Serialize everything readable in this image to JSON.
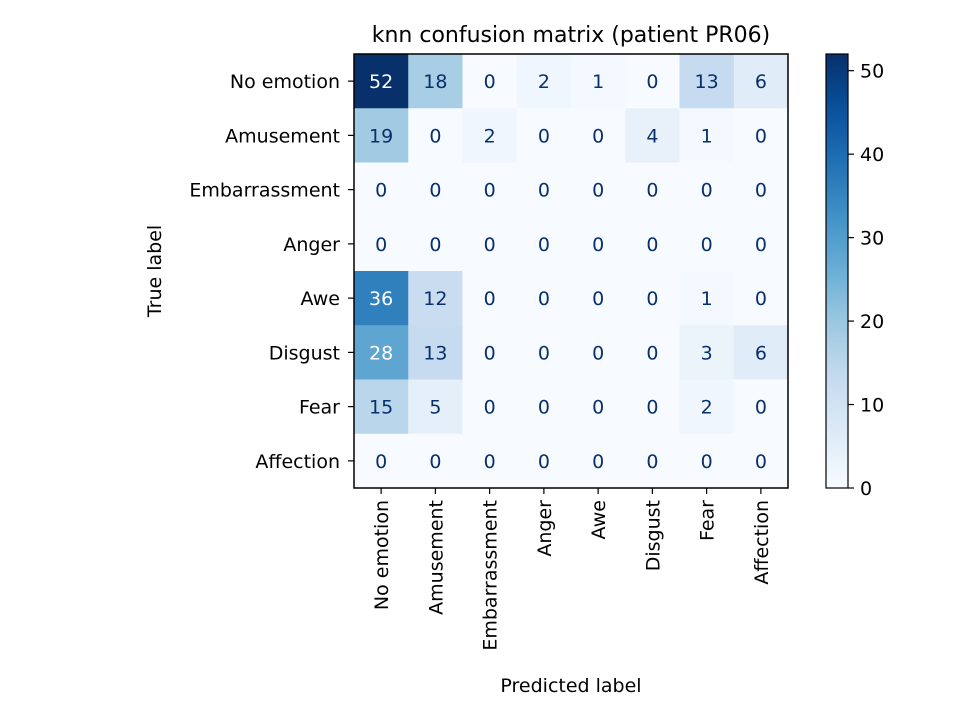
{
  "chart_data": {
    "type": "heatmap",
    "title": "knn confusion matrix (patient PR06)",
    "xlabel": "Predicted label",
    "ylabel": "True label",
    "x_categories": [
      "No emotion",
      "Amusement",
      "Embarrassment",
      "Anger",
      "Awe",
      "Disgust",
      "Fear",
      "Affection"
    ],
    "y_categories": [
      "No emotion",
      "Amusement",
      "Embarrassment",
      "Anger",
      "Awe",
      "Disgust",
      "Fear",
      "Affection"
    ],
    "matrix": [
      [
        52,
        18,
        0,
        2,
        1,
        0,
        13,
        6
      ],
      [
        19,
        0,
        2,
        0,
        0,
        4,
        1,
        0
      ],
      [
        0,
        0,
        0,
        0,
        0,
        0,
        0,
        0
      ],
      [
        0,
        0,
        0,
        0,
        0,
        0,
        0,
        0
      ],
      [
        36,
        12,
        0,
        0,
        0,
        0,
        1,
        0
      ],
      [
        28,
        13,
        0,
        0,
        0,
        0,
        3,
        6
      ],
      [
        15,
        5,
        0,
        0,
        0,
        0,
        2,
        0
      ],
      [
        0,
        0,
        0,
        0,
        0,
        0,
        0,
        0
      ]
    ],
    "colormap": "Blues",
    "colorbar": {
      "range": [
        0,
        52
      ],
      "ticks": [
        0,
        10,
        20,
        30,
        40,
        50
      ]
    }
  }
}
